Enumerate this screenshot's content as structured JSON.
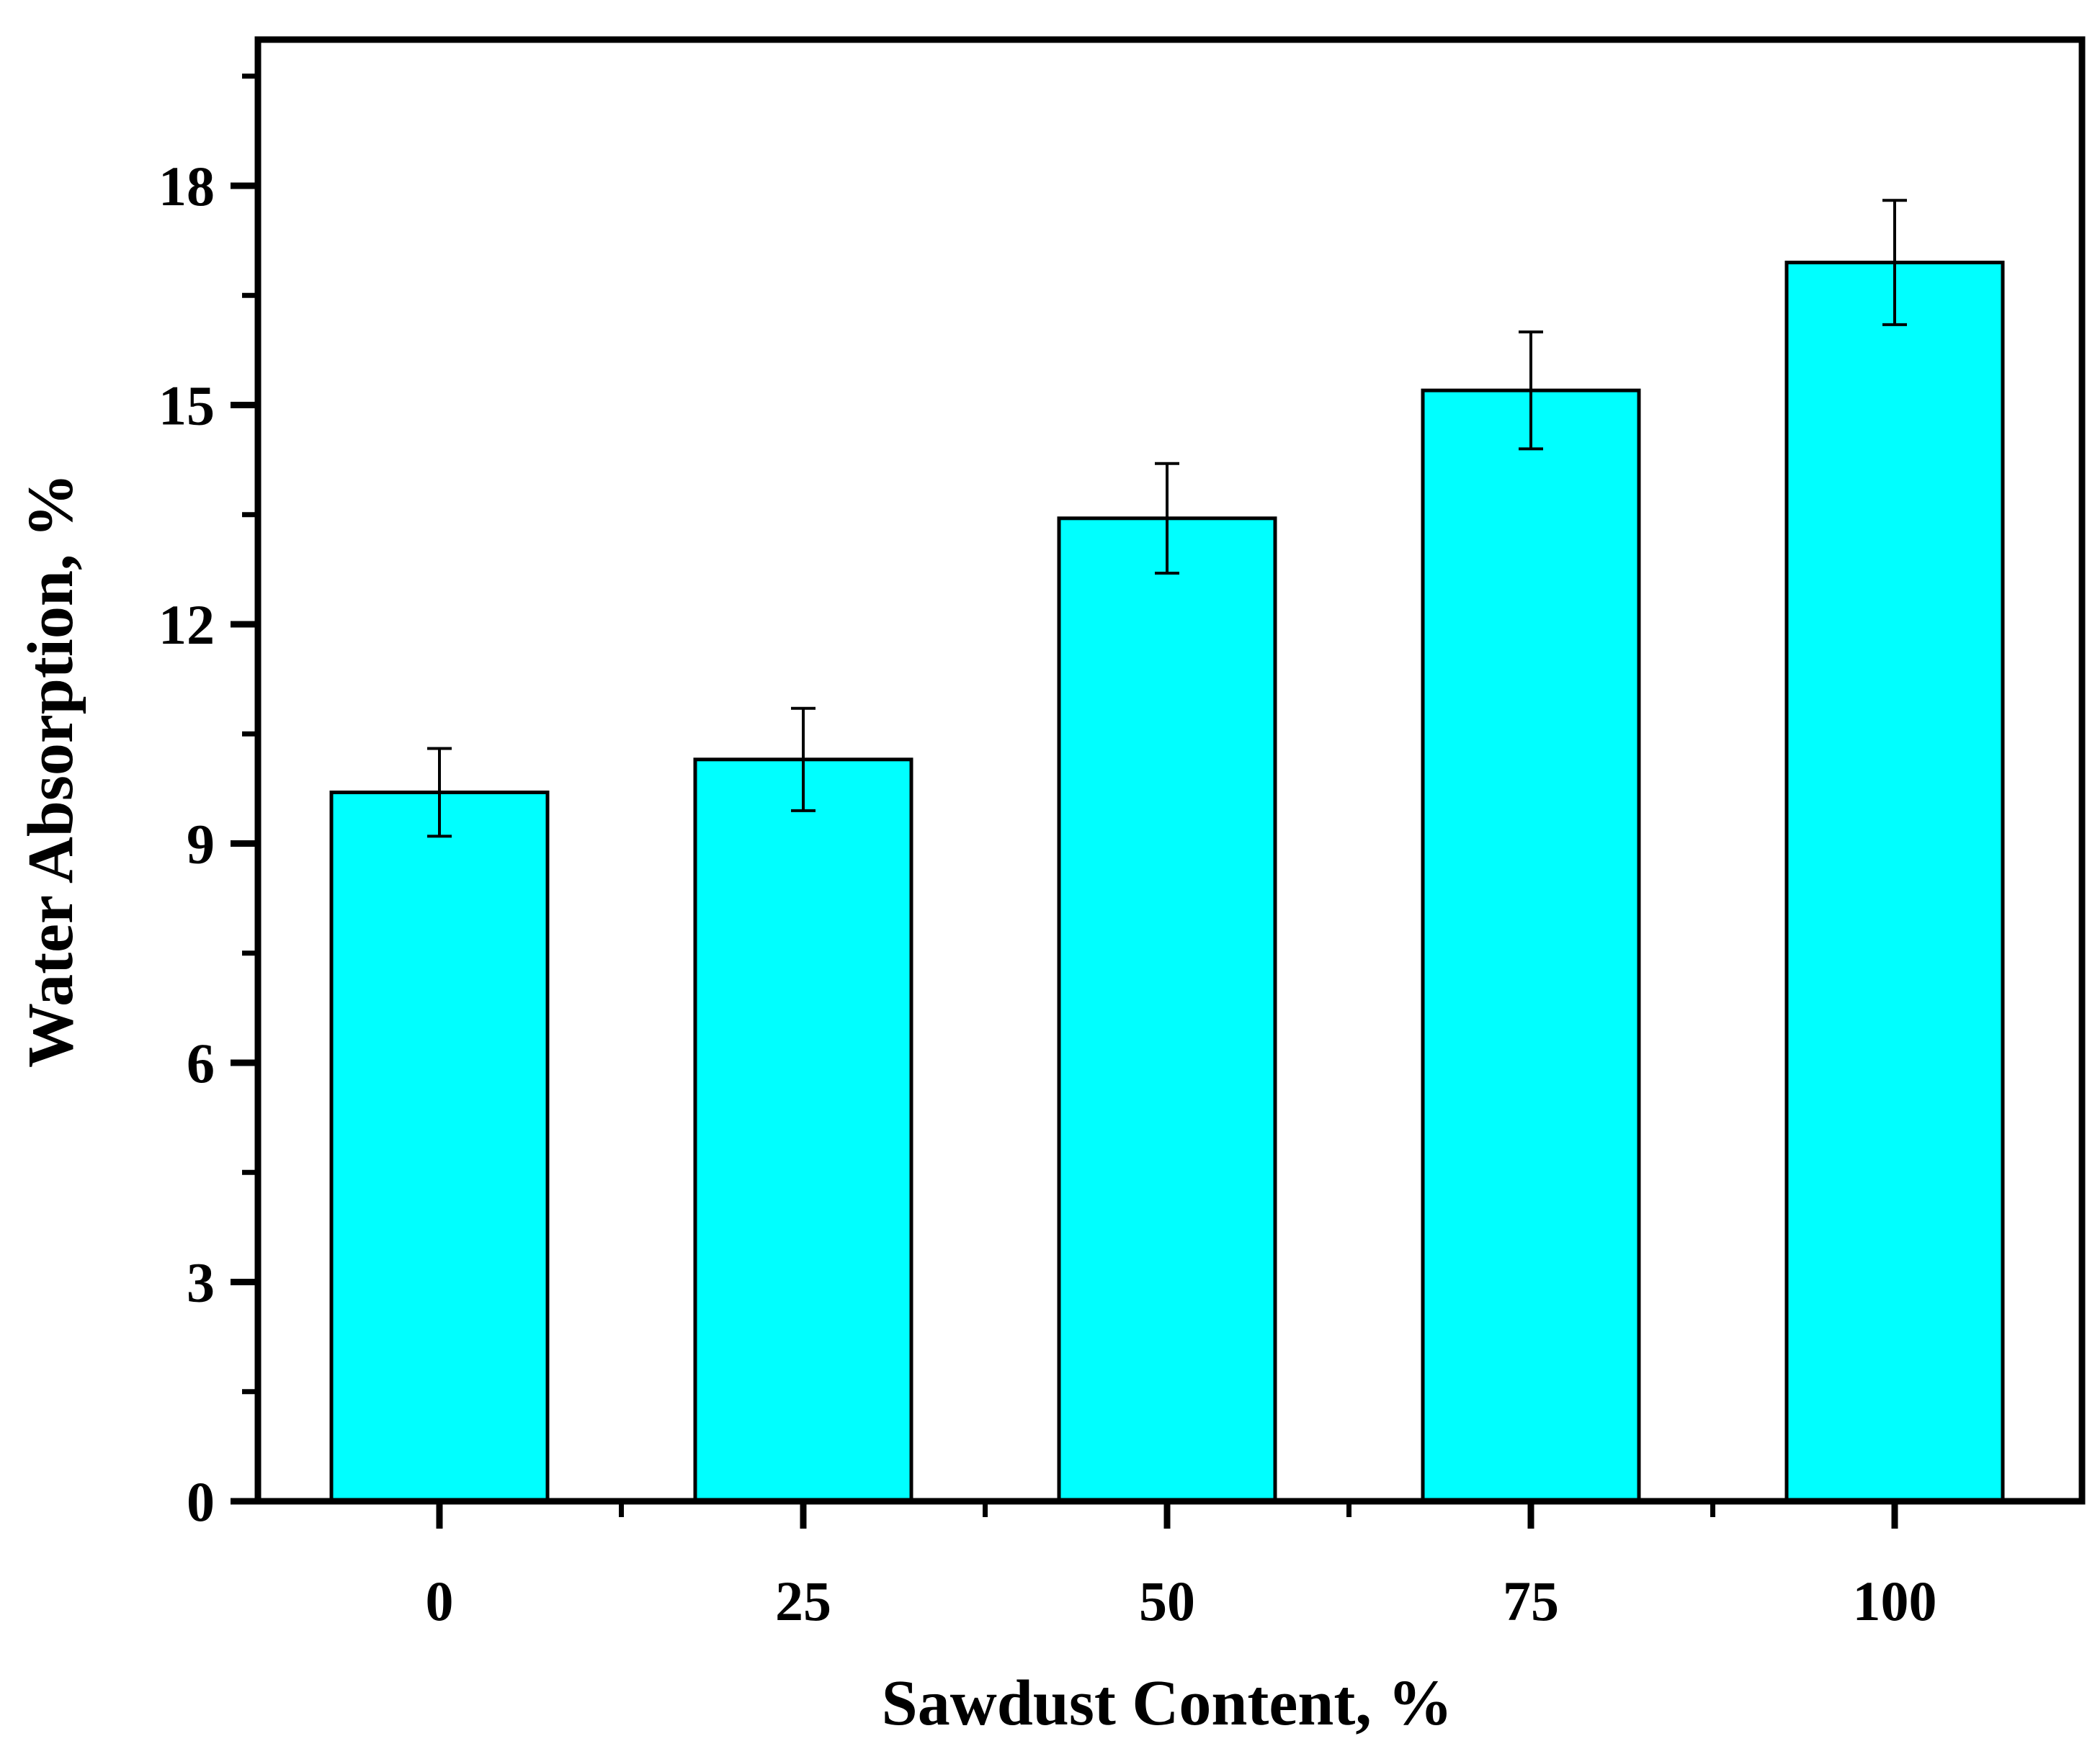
{
  "chart_data": {
    "type": "bar",
    "title": "",
    "xlabel": "Sawdust Content, %",
    "ylabel": "Water Absorption, %",
    "categories": [
      "0",
      "25",
      "50",
      "75",
      "100"
    ],
    "values": [
      9.7,
      10.15,
      13.45,
      15.2,
      16.95
    ],
    "error": [
      0.6,
      0.7,
      0.75,
      0.8,
      0.85
    ],
    "ylim": [
      0,
      20
    ],
    "yticks": [
      0,
      3,
      6,
      9,
      12,
      15,
      18
    ],
    "ytick_labels": [
      "0",
      "3",
      "6",
      "9",
      "12",
      "15",
      "18"
    ],
    "grid": false,
    "legend": "none",
    "colors": {
      "bar_fill": "#00ffff",
      "bar_edge": "#000000",
      "axis": "#000000",
      "error_bar": "#000000"
    }
  }
}
